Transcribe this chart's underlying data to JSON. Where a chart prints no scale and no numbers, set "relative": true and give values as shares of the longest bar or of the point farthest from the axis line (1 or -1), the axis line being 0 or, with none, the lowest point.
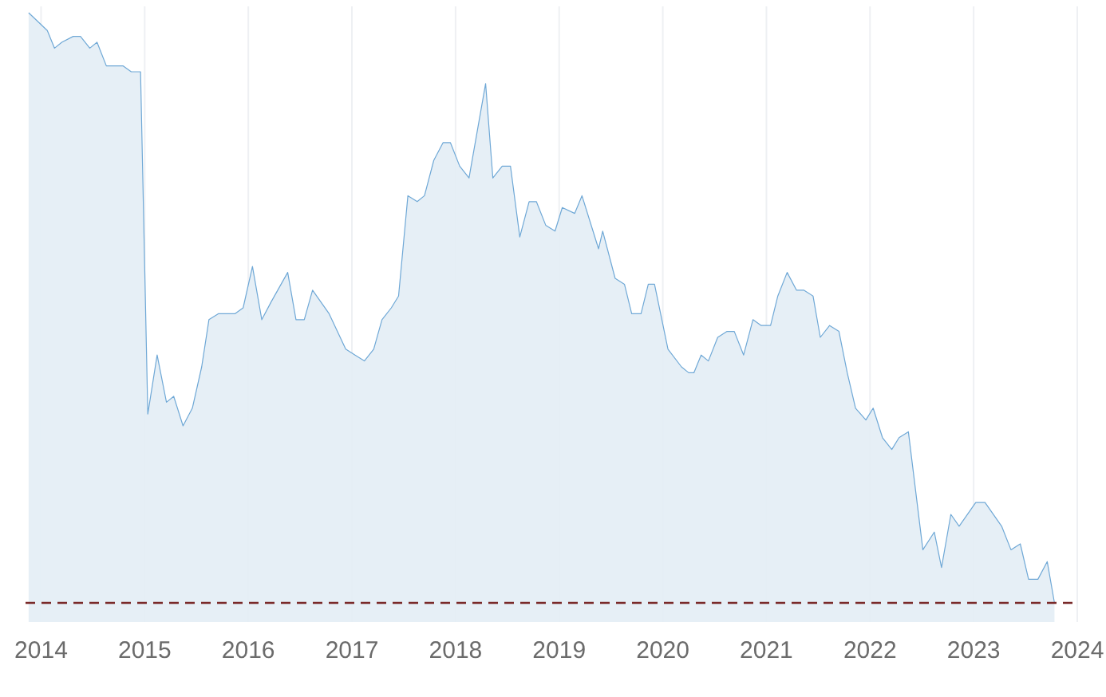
{
  "chart_data": {
    "type": "area",
    "relative": true,
    "grid": "x",
    "x": [
      2013.88,
      2014.06,
      2014.13,
      2014.2,
      2014.31,
      2014.38,
      2014.47,
      2014.54,
      2014.63,
      2014.71,
      2014.79,
      2014.87,
      2014.96,
      2015.03,
      2015.12,
      2015.21,
      2015.28,
      2015.37,
      2015.46,
      2015.55,
      2015.62,
      2015.71,
      2015.87,
      2015.95,
      2016.04,
      2016.13,
      2016.22,
      2016.38,
      2016.46,
      2016.54,
      2016.62,
      2016.78,
      2016.94,
      2017.03,
      2017.12,
      2017.21,
      2017.29,
      2017.38,
      2017.45,
      2017.54,
      2017.63,
      2017.7,
      2017.79,
      2017.88,
      2017.95,
      2018.04,
      2018.13,
      2018.29,
      2018.36,
      2018.45,
      2018.53,
      2018.62,
      2018.71,
      2018.78,
      2018.87,
      2018.96,
      2019.03,
      2019.15,
      2019.22,
      2019.38,
      2019.42,
      2019.54,
      2019.63,
      2019.7,
      2019.79,
      2019.86,
      2019.92,
      2020.05,
      2020.18,
      2020.25,
      2020.3,
      2020.37,
      2020.44,
      2020.53,
      2020.62,
      2020.69,
      2020.78,
      2020.87,
      2020.95,
      2021.04,
      2021.11,
      2021.2,
      2021.29,
      2021.36,
      2021.45,
      2021.52,
      2021.61,
      2021.7,
      2021.78,
      2021.86,
      2021.96,
      2022.03,
      2022.12,
      2022.21,
      2022.28,
      2022.37,
      2022.51,
      2022.62,
      2022.69,
      2022.78,
      2022.86,
      2023.02,
      2023.11,
      2023.27,
      2023.36,
      2023.45,
      2023.53,
      2023.62,
      2023.71,
      2023.78
    ],
    "series": [
      {
        "color": "#6fa8d6",
        "values": [
          1,
          0.97,
          0.94,
          0.95,
          0.96,
          0.96,
          0.94,
          0.95,
          0.91,
          0.91,
          0.91,
          0.9,
          0.9,
          0.32,
          0.42,
          0.34,
          0.35,
          0.3,
          0.33,
          0.4,
          0.48,
          0.49,
          0.49,
          0.5,
          0.57,
          0.48,
          0.51,
          0.56,
          0.48,
          0.48,
          0.53,
          0.49,
          0.43,
          0.42,
          0.41,
          0.43,
          0.48,
          0.5,
          0.52,
          0.69,
          0.68,
          0.69,
          0.75,
          0.78,
          0.78,
          0.74,
          0.72,
          0.88,
          0.72,
          0.74,
          0.74,
          0.62,
          0.68,
          0.68,
          0.64,
          0.63,
          0.67,
          0.66,
          0.69,
          0.6,
          0.63,
          0.55,
          0.54,
          0.49,
          0.49,
          0.54,
          0.54,
          0.43,
          0.4,
          0.39,
          0.39,
          0.42,
          0.41,
          0.45,
          0.46,
          0.46,
          0.42,
          0.48,
          0.47,
          0.47,
          0.52,
          0.56,
          0.53,
          0.53,
          0.52,
          0.45,
          0.47,
          0.46,
          0.39,
          0.33,
          0.31,
          0.33,
          0.28,
          0.26,
          0.28,
          0.29,
          0.09,
          0.12,
          0.06,
          0.15,
          0.13,
          0.17,
          0.17,
          0.13,
          0.09,
          0.1,
          0.04,
          0.04,
          0.07,
          0
        ]
      }
    ],
    "xlim": [
      2013.85,
      2024
    ],
    "xticks": [
      2014,
      2015,
      2016,
      2017,
      2018,
      2019,
      2020,
      2021,
      2022,
      2023,
      2024
    ],
    "ref_lines": [
      {
        "axis": "y",
        "value": 0,
        "color": "#7a2a2a",
        "line_style": "dashed"
      }
    ]
  }
}
